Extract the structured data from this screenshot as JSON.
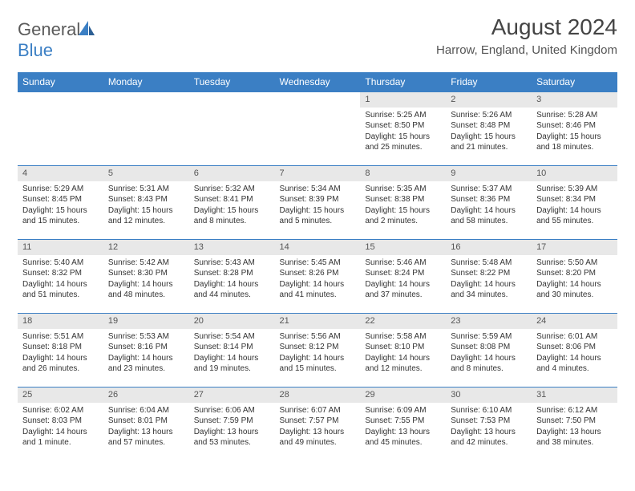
{
  "brand": {
    "part1": "General",
    "part2": "Blue"
  },
  "title": "August 2024",
  "location": "Harrow, England, United Kingdom",
  "colors": {
    "header_bg": "#3b7fc4",
    "header_text": "#ffffff",
    "daynum_bg": "#e8e8e8",
    "border": "#3b7fc4",
    "body_text": "#333333"
  },
  "day_headers": [
    "Sunday",
    "Monday",
    "Tuesday",
    "Wednesday",
    "Thursday",
    "Friday",
    "Saturday"
  ],
  "weeks": [
    [
      {
        "n": "",
        "sr": "",
        "ss": "",
        "dl": ""
      },
      {
        "n": "",
        "sr": "",
        "ss": "",
        "dl": ""
      },
      {
        "n": "",
        "sr": "",
        "ss": "",
        "dl": ""
      },
      {
        "n": "",
        "sr": "",
        "ss": "",
        "dl": ""
      },
      {
        "n": "1",
        "sr": "Sunrise: 5:25 AM",
        "ss": "Sunset: 8:50 PM",
        "dl": "Daylight: 15 hours and 25 minutes."
      },
      {
        "n": "2",
        "sr": "Sunrise: 5:26 AM",
        "ss": "Sunset: 8:48 PM",
        "dl": "Daylight: 15 hours and 21 minutes."
      },
      {
        "n": "3",
        "sr": "Sunrise: 5:28 AM",
        "ss": "Sunset: 8:46 PM",
        "dl": "Daylight: 15 hours and 18 minutes."
      }
    ],
    [
      {
        "n": "4",
        "sr": "Sunrise: 5:29 AM",
        "ss": "Sunset: 8:45 PM",
        "dl": "Daylight: 15 hours and 15 minutes."
      },
      {
        "n": "5",
        "sr": "Sunrise: 5:31 AM",
        "ss": "Sunset: 8:43 PM",
        "dl": "Daylight: 15 hours and 12 minutes."
      },
      {
        "n": "6",
        "sr": "Sunrise: 5:32 AM",
        "ss": "Sunset: 8:41 PM",
        "dl": "Daylight: 15 hours and 8 minutes."
      },
      {
        "n": "7",
        "sr": "Sunrise: 5:34 AM",
        "ss": "Sunset: 8:39 PM",
        "dl": "Daylight: 15 hours and 5 minutes."
      },
      {
        "n": "8",
        "sr": "Sunrise: 5:35 AM",
        "ss": "Sunset: 8:38 PM",
        "dl": "Daylight: 15 hours and 2 minutes."
      },
      {
        "n": "9",
        "sr": "Sunrise: 5:37 AM",
        "ss": "Sunset: 8:36 PM",
        "dl": "Daylight: 14 hours and 58 minutes."
      },
      {
        "n": "10",
        "sr": "Sunrise: 5:39 AM",
        "ss": "Sunset: 8:34 PM",
        "dl": "Daylight: 14 hours and 55 minutes."
      }
    ],
    [
      {
        "n": "11",
        "sr": "Sunrise: 5:40 AM",
        "ss": "Sunset: 8:32 PM",
        "dl": "Daylight: 14 hours and 51 minutes."
      },
      {
        "n": "12",
        "sr": "Sunrise: 5:42 AM",
        "ss": "Sunset: 8:30 PM",
        "dl": "Daylight: 14 hours and 48 minutes."
      },
      {
        "n": "13",
        "sr": "Sunrise: 5:43 AM",
        "ss": "Sunset: 8:28 PM",
        "dl": "Daylight: 14 hours and 44 minutes."
      },
      {
        "n": "14",
        "sr": "Sunrise: 5:45 AM",
        "ss": "Sunset: 8:26 PM",
        "dl": "Daylight: 14 hours and 41 minutes."
      },
      {
        "n": "15",
        "sr": "Sunrise: 5:46 AM",
        "ss": "Sunset: 8:24 PM",
        "dl": "Daylight: 14 hours and 37 minutes."
      },
      {
        "n": "16",
        "sr": "Sunrise: 5:48 AM",
        "ss": "Sunset: 8:22 PM",
        "dl": "Daylight: 14 hours and 34 minutes."
      },
      {
        "n": "17",
        "sr": "Sunrise: 5:50 AM",
        "ss": "Sunset: 8:20 PM",
        "dl": "Daylight: 14 hours and 30 minutes."
      }
    ],
    [
      {
        "n": "18",
        "sr": "Sunrise: 5:51 AM",
        "ss": "Sunset: 8:18 PM",
        "dl": "Daylight: 14 hours and 26 minutes."
      },
      {
        "n": "19",
        "sr": "Sunrise: 5:53 AM",
        "ss": "Sunset: 8:16 PM",
        "dl": "Daylight: 14 hours and 23 minutes."
      },
      {
        "n": "20",
        "sr": "Sunrise: 5:54 AM",
        "ss": "Sunset: 8:14 PM",
        "dl": "Daylight: 14 hours and 19 minutes."
      },
      {
        "n": "21",
        "sr": "Sunrise: 5:56 AM",
        "ss": "Sunset: 8:12 PM",
        "dl": "Daylight: 14 hours and 15 minutes."
      },
      {
        "n": "22",
        "sr": "Sunrise: 5:58 AM",
        "ss": "Sunset: 8:10 PM",
        "dl": "Daylight: 14 hours and 12 minutes."
      },
      {
        "n": "23",
        "sr": "Sunrise: 5:59 AM",
        "ss": "Sunset: 8:08 PM",
        "dl": "Daylight: 14 hours and 8 minutes."
      },
      {
        "n": "24",
        "sr": "Sunrise: 6:01 AM",
        "ss": "Sunset: 8:06 PM",
        "dl": "Daylight: 14 hours and 4 minutes."
      }
    ],
    [
      {
        "n": "25",
        "sr": "Sunrise: 6:02 AM",
        "ss": "Sunset: 8:03 PM",
        "dl": "Daylight: 14 hours and 1 minute."
      },
      {
        "n": "26",
        "sr": "Sunrise: 6:04 AM",
        "ss": "Sunset: 8:01 PM",
        "dl": "Daylight: 13 hours and 57 minutes."
      },
      {
        "n": "27",
        "sr": "Sunrise: 6:06 AM",
        "ss": "Sunset: 7:59 PM",
        "dl": "Daylight: 13 hours and 53 minutes."
      },
      {
        "n": "28",
        "sr": "Sunrise: 6:07 AM",
        "ss": "Sunset: 7:57 PM",
        "dl": "Daylight: 13 hours and 49 minutes."
      },
      {
        "n": "29",
        "sr": "Sunrise: 6:09 AM",
        "ss": "Sunset: 7:55 PM",
        "dl": "Daylight: 13 hours and 45 minutes."
      },
      {
        "n": "30",
        "sr": "Sunrise: 6:10 AM",
        "ss": "Sunset: 7:53 PM",
        "dl": "Daylight: 13 hours and 42 minutes."
      },
      {
        "n": "31",
        "sr": "Sunrise: 6:12 AM",
        "ss": "Sunset: 7:50 PM",
        "dl": "Daylight: 13 hours and 38 minutes."
      }
    ]
  ]
}
